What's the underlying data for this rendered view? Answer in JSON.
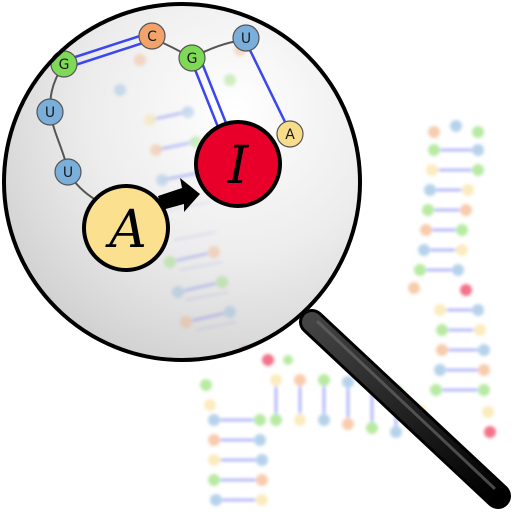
{
  "icon": {
    "title": "RNA A-to-I editing",
    "bases": {
      "g1": "G",
      "c1": "C",
      "g2": "G",
      "u1": "U",
      "u2": "U",
      "u3": "U",
      "a1": "A"
    },
    "edit_from": "A",
    "edit_to": "I"
  },
  "colors": {
    "G": "#7ed957",
    "C": "#f2a36b",
    "U": "#7aaedb",
    "A": "#f7dd8a",
    "I": "#e8002a",
    "pair_line": "#3b47f0",
    "handle": "#111111"
  }
}
